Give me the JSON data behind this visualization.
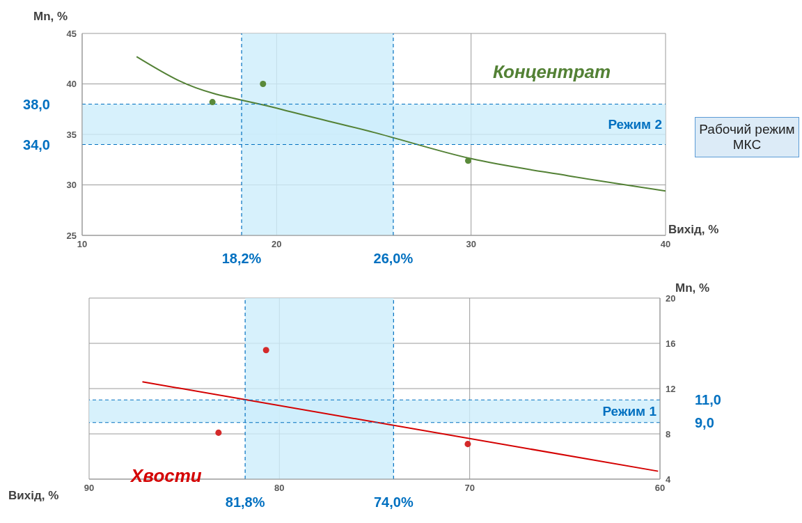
{
  "chart_data": [
    {
      "type": "scatter",
      "xlabel": "Вихід, %",
      "ylabel": "Mn, %",
      "xlim": [
        10,
        40
      ],
      "xticks": [
        10,
        20,
        30,
        40
      ],
      "ylim": [
        25,
        45
      ],
      "yticks": [
        25,
        30,
        35,
        40,
        45
      ],
      "grid": true,
      "series": [
        {
          "type": "scatter",
          "color": "#5a8a3a",
          "x": [
            16.7,
            19.3,
            29.85
          ],
          "values": [
            38.2,
            40.0,
            32.4
          ]
        },
        {
          "type": "line",
          "color": "#538135",
          "x": [
            12.8,
            15,
            20,
            25,
            30,
            35,
            40
          ],
          "values": [
            42.7,
            40.3,
            37.6,
            35.2,
            32.6,
            30.9,
            29.4
          ]
        }
      ],
      "ref_lines": [
        {
          "axis": "x",
          "value": 18.2,
          "label": "18,2%",
          "color": "#0070c0",
          "line_style": "dashed"
        },
        {
          "axis": "x",
          "value": 26.0,
          "label": "26,0%",
          "color": "#0070c0",
          "line_style": "dashed"
        },
        {
          "axis": "y",
          "value": 38.0,
          "label": "38,0",
          "color": "#0070c0",
          "line_style": "dashed"
        },
        {
          "axis": "y",
          "value": 34.0,
          "label": "34,0",
          "color": "#0070c0",
          "line_style": "dashed"
        }
      ],
      "bands": [
        {
          "axis": "x",
          "from": 18.2,
          "to": 26.0,
          "color": "#cdeefb"
        },
        {
          "axis": "y",
          "from": 34.0,
          "to": 38.0,
          "label": "Режим 2",
          "color": "#cdeefb"
        }
      ],
      "annotations": [
        "Концентрат",
        "Рабочий режим МКС"
      ]
    },
    {
      "type": "scatter",
      "xlabel": "Вихід, %",
      "ylabel": "Mn, %",
      "xlim": [
        90,
        60
      ],
      "xticks": [
        90,
        80,
        70,
        60
      ],
      "ylim": [
        4,
        20
      ],
      "yticks": [
        4,
        8,
        12,
        16,
        20
      ],
      "grid": true,
      "series": [
        {
          "type": "scatter",
          "color": "#d42a2a",
          "x": [
            80.7,
            83.2,
            70.1
          ],
          "values": [
            15.4,
            8.1,
            7.1
          ]
        },
        {
          "type": "line",
          "color": "#d40000",
          "x": [
            87.2,
            60.1
          ],
          "values": [
            12.6,
            4.7
          ]
        }
      ],
      "ref_lines": [
        {
          "axis": "x",
          "value": 81.8,
          "label": "81,8%",
          "color": "#0070c0",
          "line_style": "dashed"
        },
        {
          "axis": "x",
          "value": 74.0,
          "label": "74,0%",
          "color": "#0070c0",
          "line_style": "dashed"
        },
        {
          "axis": "y",
          "value": 11.0,
          "label": "11,0",
          "color": "#0070c0",
          "line_style": "dashed"
        },
        {
          "axis": "y",
          "value": 9.0,
          "label": "9,0",
          "color": "#0070c0",
          "line_style": "dashed"
        }
      ],
      "bands": [
        {
          "axis": "x",
          "from": 74.0,
          "to": 81.8,
          "color": "#cdeefb"
        },
        {
          "axis": "y",
          "from": 9.0,
          "to": 11.0,
          "label": "Режим 1",
          "color": "#cdeefb"
        }
      ],
      "annotations": [
        "Хвости"
      ]
    }
  ]
}
